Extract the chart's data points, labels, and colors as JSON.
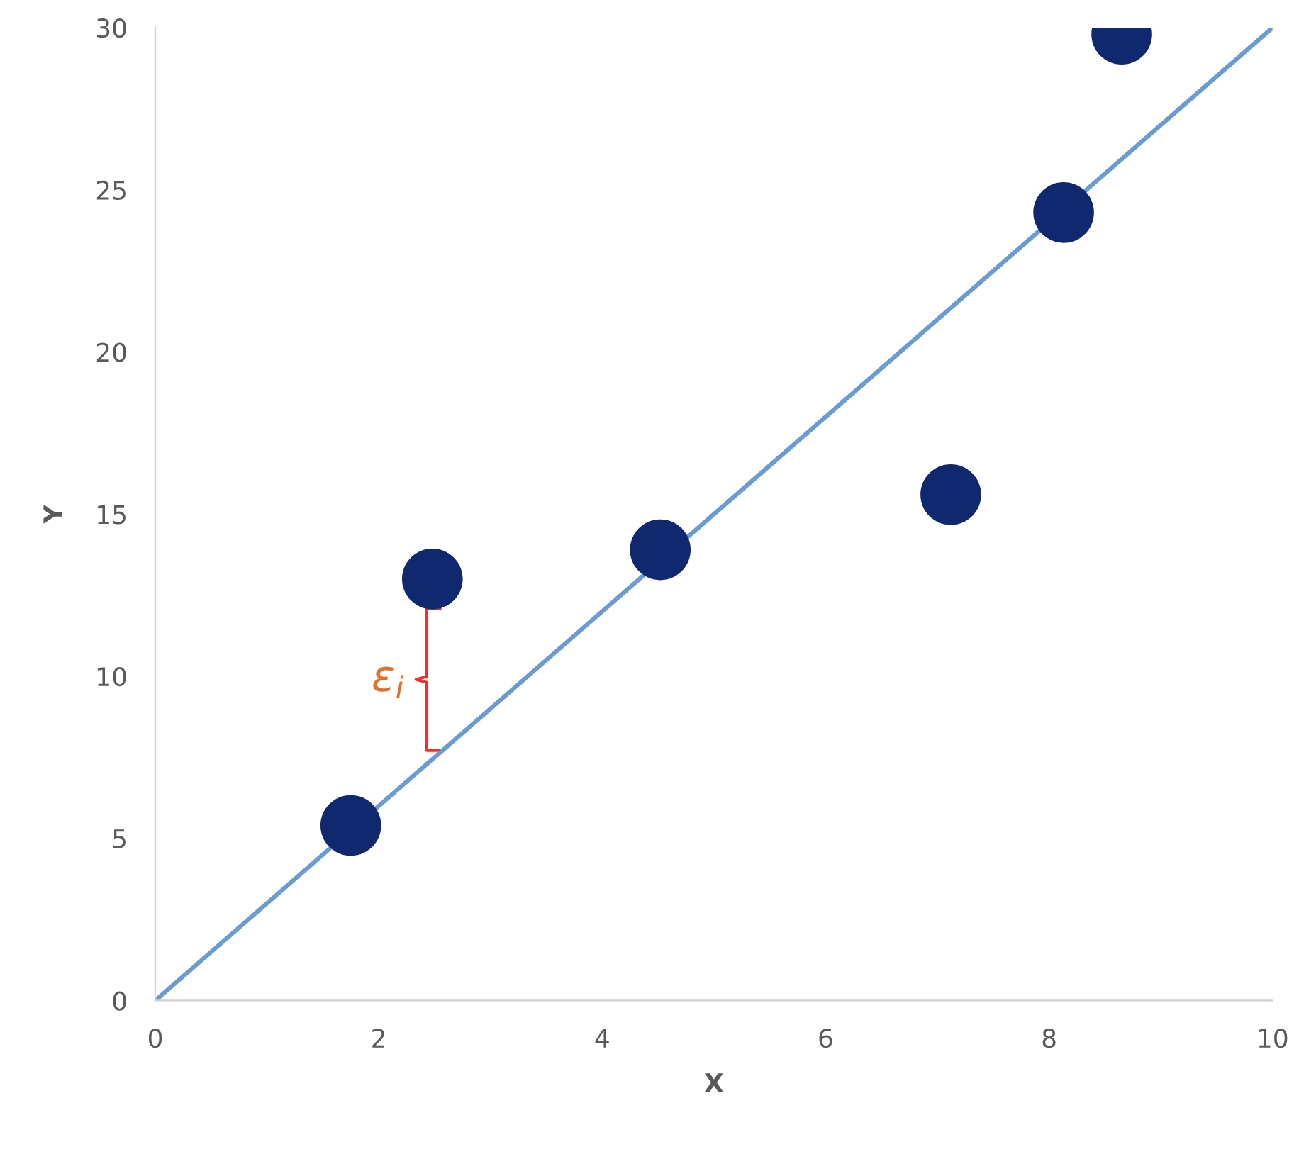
{
  "chart_data": {
    "type": "scatter",
    "xlabel": "X",
    "ylabel": "Y",
    "series": [
      {
        "marker": "circle",
        "color": "#10296e",
        "x": [
          1.75,
          2.48,
          4.52,
          7.12,
          8.13,
          8.65
        ],
        "values": [
          5.4,
          13.0,
          13.9,
          15.6,
          24.3,
          29.8
        ]
      },
      {
        "type": "line",
        "color": "#6a9bd1",
        "x": [
          0,
          10
        ],
        "values": [
          0,
          30
        ]
      }
    ],
    "annotations": [
      "ε$_{i}$"
    ],
    "xlim": [
      0,
      10
    ],
    "xticks": [
      0,
      2,
      4,
      6,
      8,
      10
    ],
    "ylim": [
      0,
      30
    ],
    "yticks": [
      0,
      5,
      10,
      15,
      20,
      25,
      30
    ],
    "grid": false,
    "legend": false
  }
}
